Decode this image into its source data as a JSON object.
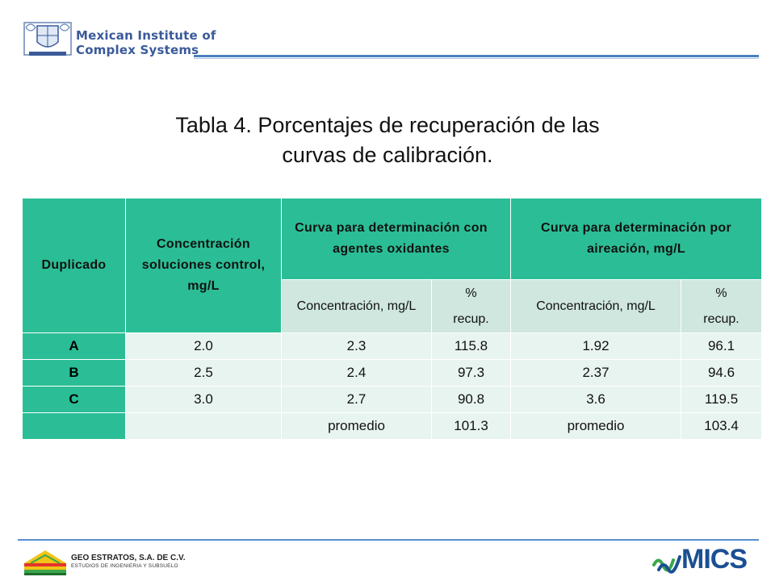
{
  "header": {
    "logo_line1": "Mexican Institute of",
    "logo_line2": "Complex Systems"
  },
  "title": {
    "line1": "Tabla 4. Porcentajes de recuperación de las",
    "line2": "curvas de calibración."
  },
  "table": {
    "headers": {
      "col1": "Duplicado",
      "col2": "Concentración soluciones control, mg/L",
      "group1": "Curva para determinación con agentes oxidantes",
      "group2": "Curva para determinación por aireación, mg/L",
      "sub_conc": "Concentración, mg/L",
      "sub_recup": "% recup."
    },
    "rows": [
      {
        "dup": "A",
        "control": "2.0",
        "conc1": "2.3",
        "rec1": "115.8",
        "conc2": "1.92",
        "rec2": "96.1"
      },
      {
        "dup": "B",
        "control": "2.5",
        "conc1": "2.4",
        "rec1": "97.3",
        "conc2": "2.37",
        "rec2": "94.6"
      },
      {
        "dup": "C",
        "control": "3.0",
        "conc1": "2.7",
        "rec1": "90.8",
        "conc2": "3.6",
        "rec2": "119.5"
      },
      {
        "dup": "",
        "control": "",
        "conc1": "promedio",
        "rec1": "101.3",
        "conc2": "promedio",
        "rec2": "103.4"
      }
    ]
  },
  "footer": {
    "company": "GEO ESTRATOS, S.A. DE C.V.",
    "company_sub": "ESTUDIOS DE INGENIERIA Y SUBSUELO",
    "brand": "MICS"
  },
  "colors": {
    "header_teal": "#2bbe96",
    "subheader": "#cfe7de",
    "cell": "#e8f4ef",
    "accent_blue": "#1b4f93"
  }
}
